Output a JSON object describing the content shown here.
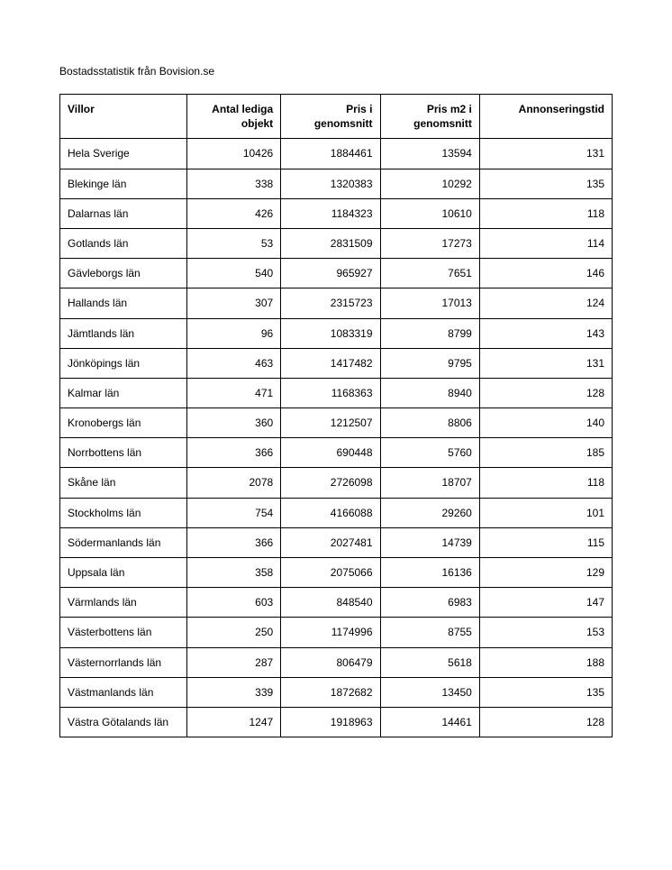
{
  "title": "Bostadsstatistik från Bovision.se",
  "table": {
    "columns": [
      {
        "label": "Villor",
        "align": "left"
      },
      {
        "label": "Antal lediga objekt",
        "align": "right"
      },
      {
        "label": "Pris i genomsnitt",
        "align": "right"
      },
      {
        "label": "Pris m2 i genomsnitt",
        "align": "right"
      },
      {
        "label": "Annonseringstid",
        "align": "right"
      }
    ],
    "rows": [
      [
        "Hela Sverige",
        "10426",
        "1884461",
        "13594",
        "131"
      ],
      [
        "Blekinge län",
        "338",
        "1320383",
        "10292",
        "135"
      ],
      [
        "Dalarnas län",
        "426",
        "1184323",
        "10610",
        "118"
      ],
      [
        "Gotlands län",
        "53",
        "2831509",
        "17273",
        "114"
      ],
      [
        "Gävleborgs län",
        "540",
        "965927",
        "7651",
        "146"
      ],
      [
        "Hallands län",
        "307",
        "2315723",
        "17013",
        "124"
      ],
      [
        "Jämtlands län",
        "96",
        "1083319",
        "8799",
        "143"
      ],
      [
        "Jönköpings län",
        "463",
        "1417482",
        "9795",
        "131"
      ],
      [
        "Kalmar län",
        "471",
        "1168363",
        "8940",
        "128"
      ],
      [
        "Kronobergs län",
        "360",
        "1212507",
        "8806",
        "140"
      ],
      [
        "Norrbottens län",
        "366",
        "690448",
        "5760",
        "185"
      ],
      [
        "Skåne län",
        "2078",
        "2726098",
        "18707",
        "118"
      ],
      [
        "Stockholms län",
        "754",
        "4166088",
        "29260",
        "101"
      ],
      [
        "Södermanlands län",
        "366",
        "2027481",
        "14739",
        "115"
      ],
      [
        "Uppsala län",
        "358",
        "2075066",
        "16136",
        "129"
      ],
      [
        "Värmlands län",
        "603",
        "848540",
        "6983",
        "147"
      ],
      [
        "Västerbottens län",
        "250",
        "1174996",
        "8755",
        "153"
      ],
      [
        "Västernorrlands län",
        "287",
        "806479",
        "5618",
        "188"
      ],
      [
        "Västmanlands län",
        "339",
        "1872682",
        "13450",
        "135"
      ],
      [
        "Västra Götalands län",
        "1247",
        "1918963",
        "14461",
        "128"
      ]
    ]
  },
  "style": {
    "background_color": "#ffffff",
    "text_color": "#000000",
    "border_color": "#000000",
    "title_fontsize": 12,
    "cell_fontsize": 12,
    "font_family": "Arial"
  }
}
